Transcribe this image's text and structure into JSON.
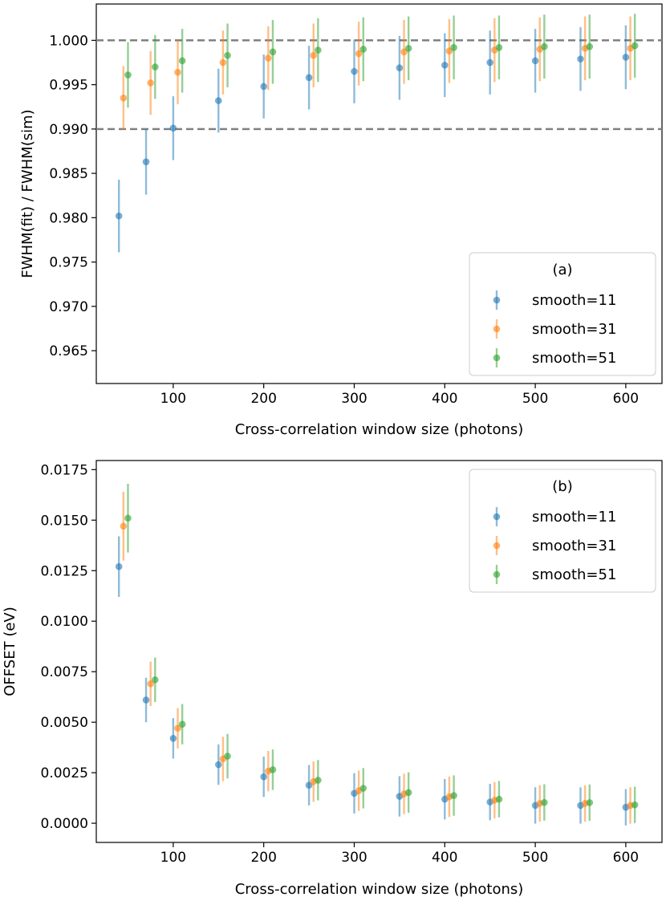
{
  "chart_data": [
    {
      "type": "scatter",
      "panel_label": "(a)",
      "xlabel": "Cross-correlation window size (photons)",
      "ylabel": "FWHM(fit) / FWHM(sim)",
      "xlim": [
        15,
        640
      ],
      "ylim": [
        0.9613,
        1.0041
      ],
      "xticks": [
        100,
        200,
        300,
        400,
        500,
        600
      ],
      "xtick_labels": [
        "100",
        "200",
        "300",
        "400",
        "500",
        "600"
      ],
      "yticks": [
        0.965,
        0.97,
        0.975,
        0.98,
        0.985,
        0.99,
        0.995,
        1.0
      ],
      "ytick_labels": [
        "0.965",
        "0.970",
        "0.975",
        "0.980",
        "0.985",
        "0.990",
        "0.995",
        "1.000"
      ],
      "hlines": [
        1.0,
        0.99
      ],
      "legend_position": "bottom-right",
      "x_offsets": [
        0,
        5,
        10
      ],
      "x": [
        40,
        70,
        100,
        150,
        200,
        250,
        300,
        350,
        400,
        450,
        500,
        550,
        600
      ],
      "series": [
        {
          "name": "smooth=11",
          "color": "#1f77b4",
          "values": [
            0.9802,
            0.9863,
            0.9901,
            0.9932,
            0.9948,
            0.9958,
            0.9965,
            0.9969,
            0.9972,
            0.9975,
            0.9977,
            0.9979,
            0.9981
          ],
          "errors": [
            0.0041,
            0.0037,
            0.0036,
            0.0036,
            0.0036,
            0.0036,
            0.0036,
            0.0036,
            0.0036,
            0.0036,
            0.0036,
            0.0036,
            0.0036
          ]
        },
        {
          "name": "smooth=31",
          "color": "#ff7f0e",
          "values": [
            0.9935,
            0.9952,
            0.9964,
            0.9975,
            0.998,
            0.9983,
            0.9985,
            0.9987,
            0.9988,
            0.9989,
            0.999,
            0.9991,
            0.9991
          ],
          "errors": [
            0.0036,
            0.0036,
            0.0036,
            0.0036,
            0.0036,
            0.0036,
            0.0036,
            0.0036,
            0.0036,
            0.0036,
            0.0036,
            0.0036,
            0.0036
          ]
        },
        {
          "name": "smooth=51",
          "color": "#2ca02c",
          "values": [
            0.9961,
            0.997,
            0.9977,
            0.9983,
            0.9987,
            0.9989,
            0.999,
            0.9991,
            0.9992,
            0.9992,
            0.9993,
            0.9993,
            0.9994
          ],
          "errors": [
            0.0037,
            0.0036,
            0.0036,
            0.0036,
            0.0036,
            0.0036,
            0.0036,
            0.0036,
            0.0036,
            0.0036,
            0.0036,
            0.0036,
            0.0036
          ]
        }
      ]
    },
    {
      "type": "scatter",
      "panel_label": "(b)",
      "xlabel": "Cross-correlation window size (photons)",
      "ylabel": "OFFSET (eV)",
      "xlim": [
        15,
        640
      ],
      "ylim": [
        -0.00095,
        0.01795
      ],
      "xticks": [
        100,
        200,
        300,
        400,
        500,
        600
      ],
      "xtick_labels": [
        "100",
        "200",
        "300",
        "400",
        "500",
        "600"
      ],
      "yticks": [
        0.0,
        0.0025,
        0.005,
        0.0075,
        0.01,
        0.0125,
        0.015,
        0.0175
      ],
      "ytick_labels": [
        "0.0000",
        "0.0025",
        "0.0050",
        "0.0075",
        "0.0100",
        "0.0125",
        "0.0150",
        "0.0175"
      ],
      "hlines": [],
      "legend_position": "top-right",
      "x_offsets": [
        0,
        5,
        10
      ],
      "x": [
        40,
        70,
        100,
        150,
        200,
        250,
        300,
        350,
        400,
        450,
        500,
        550,
        600
      ],
      "series": [
        {
          "name": "smooth=11",
          "color": "#1f77b4",
          "values": [
            0.0127,
            0.0061,
            0.0042,
            0.0029,
            0.0023,
            0.00188,
            0.00148,
            0.00133,
            0.00119,
            0.00105,
            0.00088,
            0.00088,
            0.00079
          ],
          "errors": [
            0.0015,
            0.0011,
            0.001,
            0.001,
            0.001,
            0.001,
            0.001,
            0.001,
            0.001,
            0.0009,
            0.0009,
            0.0009,
            0.0009
          ]
        },
        {
          "name": "smooth=31",
          "color": "#ff7f0e",
          "values": [
            0.0147,
            0.0069,
            0.0047,
            0.00318,
            0.00258,
            0.00206,
            0.00161,
            0.00145,
            0.00131,
            0.00114,
            0.00098,
            0.00098,
            0.00088
          ],
          "errors": [
            0.0017,
            0.0011,
            0.001,
            0.0011,
            0.001,
            0.001,
            0.001,
            0.001,
            0.001,
            0.0009,
            0.0009,
            0.0009,
            0.0009
          ]
        },
        {
          "name": "smooth=51",
          "color": "#2ca02c",
          "values": [
            0.0151,
            0.0071,
            0.0049,
            0.00332,
            0.00265,
            0.00213,
            0.00173,
            0.00152,
            0.00137,
            0.00119,
            0.00103,
            0.00102,
            0.00091
          ],
          "errors": [
            0.0017,
            0.0011,
            0.001,
            0.0011,
            0.001,
            0.001,
            0.001,
            0.001,
            0.001,
            0.0009,
            0.0009,
            0.0009,
            0.0009
          ]
        }
      ]
    }
  ]
}
